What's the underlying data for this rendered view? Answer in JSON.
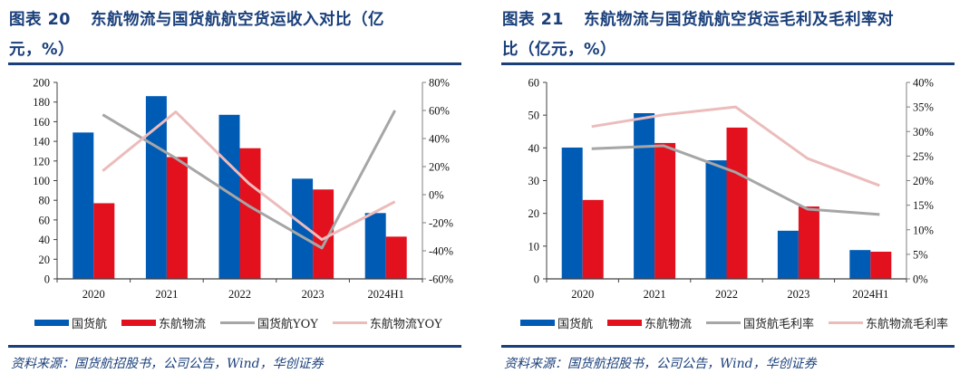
{
  "figures": [
    {
      "title_line1_prefix": "图表 20",
      "title_line1": "东航物流与国货航航空货运收入对比（亿",
      "title_line2": "元，%）",
      "source": "资料来源：国货航招股书，公司公告，Wind，华创证券"
    },
    {
      "title_line1_prefix": "图表 21",
      "title_line1": "东航物流与国货航航空货运毛利及毛利率对",
      "title_line2": "比（亿元，%）",
      "source": "资料来源：国货航招股书，公司公告，Wind，华创证券"
    }
  ],
  "colors": {
    "blue": "#005bb5",
    "red": "#e3101e",
    "gray": "#a6a6a6",
    "pink": "#ecbcbc",
    "title": "#1a3f7a"
  },
  "chart_data": [
    {
      "type": "bar",
      "title": "东航物流与国货航航空货运收入对比（亿元，%）",
      "categories": [
        "2020",
        "2021",
        "2022",
        "2023",
        "2024H1"
      ],
      "xlabel": "",
      "ylabel": "",
      "ylim": [
        0,
        200
      ],
      "yticks": [
        "0",
        "20",
        "40",
        "60",
        "80",
        "100",
        "120",
        "140",
        "160",
        "180",
        "200"
      ],
      "y2lim": [
        -60,
        80
      ],
      "y2ticks": [
        "-60%",
        "-40%",
        "-20%",
        "0%",
        "20%",
        "40%",
        "60%",
        "80%"
      ],
      "grid": false,
      "legend_position": "bottom",
      "series": [
        {
          "name": "国货航",
          "kind": "bar",
          "axis": "left",
          "color_key": "blue",
          "values": [
            149,
            186,
            167,
            102,
            67
          ]
        },
        {
          "name": "东航物流",
          "kind": "bar",
          "axis": "left",
          "color_key": "red",
          "values": [
            77,
            124,
            133,
            91,
            43
          ]
        },
        {
          "name": "国货航YOY",
          "kind": "line",
          "axis": "right",
          "color_key": "gray",
          "values": [
            57,
            26,
            -8,
            -38,
            60
          ]
        },
        {
          "name": "东航物流YOY",
          "kind": "line",
          "axis": "right",
          "color_key": "pink",
          "values": [
            17,
            59,
            8,
            -32,
            -5
          ]
        }
      ]
    },
    {
      "type": "bar",
      "title": "东航物流与国货航航空货运毛利及毛利率对比（亿元，%）",
      "categories": [
        "2020",
        "2021",
        "2022",
        "2023",
        "2024H1"
      ],
      "xlabel": "",
      "ylabel": "",
      "ylim": [
        0,
        60
      ],
      "yticks": [
        "0",
        "10",
        "20",
        "30",
        "40",
        "50",
        "60"
      ],
      "y2lim": [
        0,
        40
      ],
      "y2ticks": [
        "0%",
        "5%",
        "10%",
        "15%",
        "20%",
        "25%",
        "30%",
        "35%",
        "40%"
      ],
      "grid": false,
      "legend_position": "bottom",
      "series": [
        {
          "name": "国货航",
          "kind": "bar",
          "axis": "left",
          "color_key": "blue",
          "values": [
            40.1,
            50.6,
            36.2,
            14.7,
            8.8
          ]
        },
        {
          "name": "东航物流",
          "kind": "bar",
          "axis": "left",
          "color_key": "red",
          "values": [
            24.1,
            41.5,
            46.2,
            22.1,
            8.3
          ]
        },
        {
          "name": "国货航毛利率",
          "kind": "line",
          "axis": "right",
          "color_key": "gray",
          "values": [
            26.5,
            27.1,
            21.7,
            14.2,
            13.1
          ]
        },
        {
          "name": "东航物流毛利率",
          "kind": "line",
          "axis": "right",
          "color_key": "pink",
          "values": [
            31.0,
            33.4,
            35.0,
            24.5,
            19.0
          ]
        }
      ]
    }
  ]
}
